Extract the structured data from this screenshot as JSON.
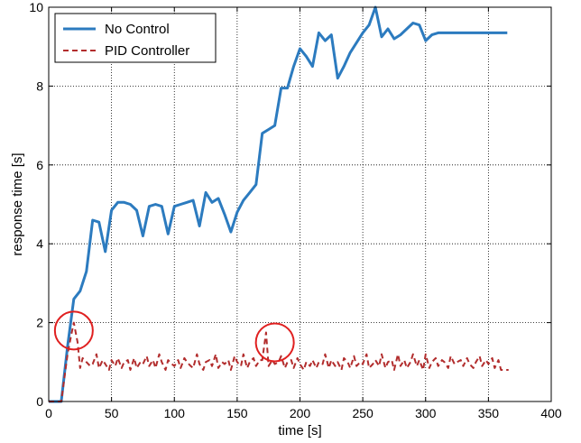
{
  "chart_data": {
    "type": "line",
    "title": "",
    "xlabel": "time [s]",
    "ylabel": "response time [s]",
    "xlim": [
      0,
      400
    ],
    "ylim": [
      0,
      10
    ],
    "xticks": [
      0,
      50,
      100,
      150,
      200,
      250,
      300,
      350,
      400
    ],
    "yticks": [
      0,
      2,
      4,
      6,
      8,
      10
    ],
    "xtick_labels": [
      "0",
      "50",
      "100",
      "150",
      "200",
      "250",
      "300",
      "350",
      "400"
    ],
    "ytick_labels": [
      "0",
      "2",
      "4",
      "6",
      "8",
      "10"
    ],
    "grid": true,
    "legend_position": "top-left",
    "series": [
      {
        "name": "No Control",
        "color": "#2c7bbf",
        "style": "solid",
        "x": [
          0,
          10,
          15,
          20,
          25,
          30,
          35,
          40,
          45,
          50,
          55,
          60,
          65,
          70,
          75,
          80,
          85,
          90,
          95,
          100,
          105,
          110,
          115,
          120,
          125,
          130,
          135,
          140,
          145,
          150,
          155,
          160,
          165,
          170,
          175,
          180,
          185,
          190,
          195,
          200,
          205,
          210,
          215,
          220,
          225,
          230,
          235,
          240,
          245,
          250,
          255,
          260,
          265,
          270,
          275,
          280,
          285,
          290,
          295,
          300,
          305,
          310,
          315,
          320,
          325,
          330,
          335,
          340,
          345,
          350,
          355,
          360,
          365
        ],
        "y": [
          0,
          0,
          1.4,
          2.6,
          2.8,
          3.3,
          4.6,
          4.55,
          3.8,
          4.85,
          5.05,
          5.05,
          5.0,
          4.85,
          4.2,
          4.95,
          5.0,
          4.95,
          4.25,
          4.95,
          5.0,
          5.05,
          5.1,
          4.45,
          5.3,
          5.05,
          5.15,
          4.75,
          4.3,
          4.8,
          5.1,
          5.3,
          5.5,
          6.8,
          6.9,
          7.0,
          7.95,
          7.95,
          8.5,
          8.95,
          8.75,
          8.5,
          9.35,
          9.15,
          9.3,
          8.2,
          8.5,
          8.85,
          9.1,
          9.35,
          9.55,
          10.0,
          9.25,
          9.45,
          9.2,
          9.3,
          9.45,
          9.6,
          9.55,
          9.15,
          9.3,
          9.35,
          9.35,
          9.35,
          9.35,
          9.35,
          9.35,
          9.35,
          9.35,
          9.35,
          9.35,
          9.35,
          9.35
        ]
      },
      {
        "name": "PID Controller",
        "color": "#b22d2d",
        "style": "dashed",
        "x": [
          0,
          10,
          15,
          18,
          20,
          23,
          25,
          27,
          30,
          33,
          35,
          38,
          40,
          43,
          45,
          48,
          50,
          53,
          55,
          58,
          60,
          63,
          65,
          68,
          70,
          73,
          75,
          78,
          80,
          83,
          85,
          88,
          90,
          93,
          95,
          98,
          100,
          103,
          105,
          108,
          110,
          113,
          115,
          118,
          120,
          123,
          125,
          128,
          130,
          133,
          135,
          138,
          140,
          143,
          145,
          148,
          150,
          153,
          155,
          158,
          160,
          163,
          165,
          168,
          170,
          173,
          175,
          178,
          180,
          183,
          185,
          188,
          190,
          193,
          195,
          198,
          200,
          203,
          205,
          208,
          210,
          213,
          215,
          218,
          220,
          223,
          225,
          228,
          230,
          233,
          235,
          238,
          240,
          243,
          245,
          248,
          250,
          253,
          255,
          258,
          260,
          263,
          265,
          268,
          270,
          273,
          275,
          278,
          280,
          283,
          285,
          288,
          290,
          293,
          295,
          298,
          300,
          303,
          305,
          308,
          310,
          313,
          315,
          318,
          320,
          323,
          325,
          328,
          330,
          333,
          335,
          338,
          340,
          343,
          345,
          348,
          350,
          353,
          355,
          358,
          360,
          363,
          366
        ],
        "y": [
          0,
          0,
          1.2,
          1.7,
          2.0,
          1.5,
          0.85,
          1.1,
          1.0,
          0.9,
          0.95,
          1.2,
          0.85,
          1.05,
          0.95,
          0.8,
          1.05,
          0.9,
          1.1,
          0.85,
          1.0,
          1.05,
          0.8,
          1.1,
          0.85,
          1.0,
          0.95,
          1.15,
          0.9,
          1.05,
          0.85,
          1.2,
          1.0,
          0.8,
          1.05,
          0.95,
          0.9,
          1.05,
          0.85,
          1.1,
          1.0,
          0.9,
          0.85,
          1.2,
          0.95,
          0.8,
          1.0,
          1.05,
          0.9,
          1.2,
          0.85,
          1.0,
          0.95,
          1.05,
          0.8,
          1.15,
          1.0,
          0.9,
          1.2,
          0.85,
          1.0,
          1.1,
          0.9,
          1.05,
          1.05,
          1.75,
          0.9,
          1.05,
          0.95,
          1.0,
          1.15,
          0.85,
          1.0,
          1.05,
          0.85,
          1.1,
          0.95,
          0.8,
          1.0,
          0.9,
          1.05,
          0.85,
          1.0,
          0.95,
          1.2,
          0.85,
          1.05,
          0.9,
          1.0,
          0.8,
          1.1,
          1.0,
          0.85,
          1.15,
          0.9,
          1.0,
          0.95,
          1.2,
          0.85,
          0.95,
          1.05,
          0.9,
          1.2,
          0.85,
          1.0,
          1.05,
          0.8,
          1.2,
          0.9,
          1.05,
          0.85,
          1.0,
          1.2,
          0.9,
          1.05,
          0.8,
          1.2,
          0.85,
          1.0,
          1.1,
          0.9,
          1.05,
          1.0,
          0.85,
          1.15,
          0.95,
          1.0,
          1.05,
          0.9,
          1.1,
          0.95,
          0.85,
          1.0,
          1.15,
          0.9,
          1.05,
          0.95,
          1.1,
          0.85,
          1.05,
          0.8,
          0.8,
          0.8
        ]
      }
    ],
    "annotations": [
      {
        "type": "circle",
        "x": 20,
        "y": 1.8,
        "color": "#e02020"
      },
      {
        "type": "circle",
        "x": 180,
        "y": 1.5,
        "color": "#e02020"
      }
    ]
  }
}
